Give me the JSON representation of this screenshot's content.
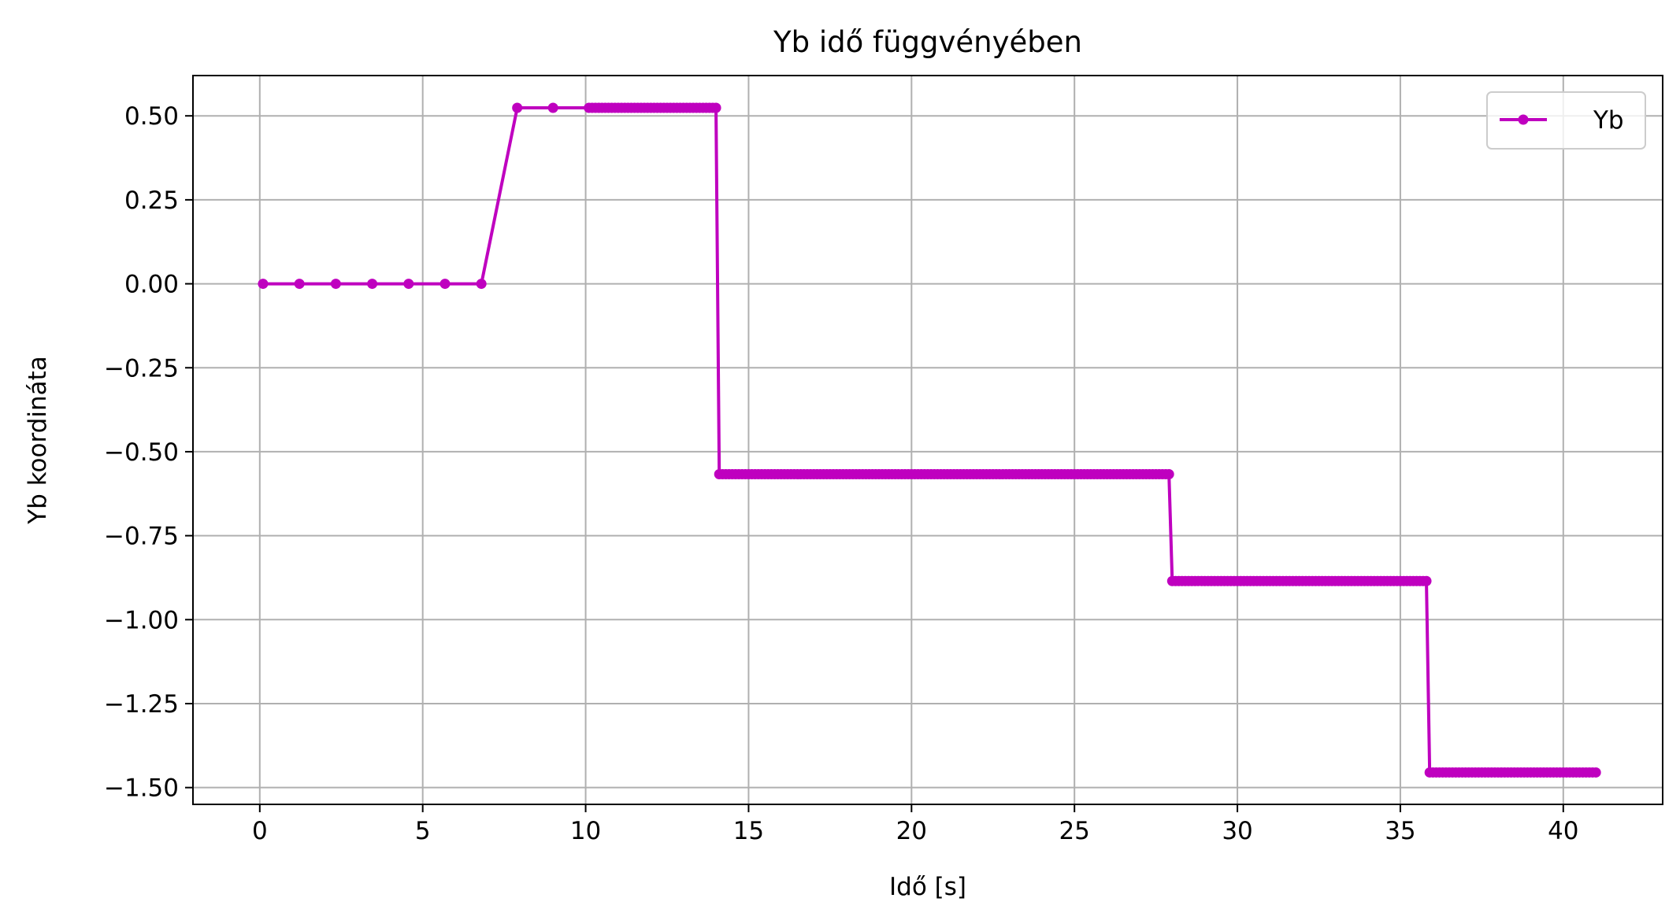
{
  "chart_data": {
    "type": "line",
    "title": "Yb idő függvényében",
    "xlabel": "Idő [s]",
    "ylabel": "Yb koordináta",
    "xlim": [
      -2.05,
      43.05
    ],
    "ylim": [
      -1.55,
      0.62
    ],
    "xticks": [
      0,
      5,
      10,
      15,
      20,
      25,
      30,
      35,
      40
    ],
    "xtick_labels": [
      "0",
      "5",
      "10",
      "15",
      "20",
      "25",
      "30",
      "35",
      "40"
    ],
    "yticks": [
      0.5,
      0.25,
      0.0,
      -0.25,
      -0.5,
      -0.75,
      -1.0,
      -1.25,
      -1.5
    ],
    "ytick_labels": [
      "0.50",
      "0.25",
      "0.00",
      "−0.25",
      "−0.50",
      "−0.75",
      "−1.00",
      "−1.25",
      "−1.50"
    ],
    "grid": true,
    "legend_position": "top-right",
    "color": "#bf00bf",
    "series": [
      {
        "name": "Yb",
        "segments": [
          {
            "x_start": 0.1,
            "x_end": 6.8,
            "y": 0.0,
            "step": 1.117
          },
          {
            "x_start": 7.9,
            "x_end": 9.0,
            "y": 0.524,
            "step": 1.1
          },
          {
            "x_start": 10.1,
            "x_end": 14.0,
            "y": 0.524,
            "step": 0.1
          },
          {
            "x_start": 14.1,
            "x_end": 27.9,
            "y": -0.567,
            "step": 0.1
          },
          {
            "x_start": 28.0,
            "x_end": 35.8,
            "y": -0.885,
            "step": 0.1
          },
          {
            "x_start": 35.9,
            "x_end": 41.0,
            "y": -1.455,
            "step": 0.1
          }
        ]
      }
    ]
  }
}
